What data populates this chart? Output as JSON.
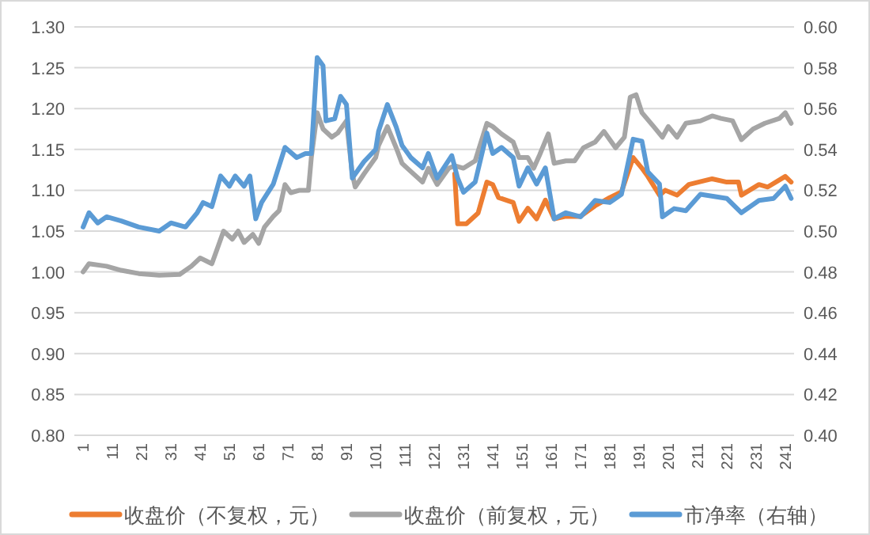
{
  "chart_data": {
    "type": "line",
    "xlim": [
      -2,
      244
    ],
    "xticks": [
      1,
      11,
      21,
      31,
      41,
      51,
      61,
      71,
      81,
      91,
      101,
      111,
      121,
      131,
      141,
      151,
      161,
      171,
      181,
      191,
      201,
      211,
      221,
      231,
      241
    ],
    "ylim": [
      0.8,
      1.3
    ],
    "yticks": [
      {
        "value": 0.8,
        "label": "0.80"
      },
      {
        "value": 0.85,
        "label": "0.85"
      },
      {
        "value": 0.9,
        "label": "0.90"
      },
      {
        "value": 0.95,
        "label": "0.95"
      },
      {
        "value": 1.0,
        "label": "1.00"
      },
      {
        "value": 1.05,
        "label": "1.05"
      },
      {
        "value": 1.1,
        "label": "1.10"
      },
      {
        "value": 1.15,
        "label": "1.15"
      },
      {
        "value": 1.2,
        "label": "1.20"
      },
      {
        "value": 1.25,
        "label": "1.25"
      },
      {
        "value": 1.3,
        "label": "1.30"
      }
    ],
    "y2lim": [
      0.4,
      0.6
    ],
    "y2ticks": [
      {
        "value": 0.4,
        "label": "0.40"
      },
      {
        "value": 0.42,
        "label": "0.42"
      },
      {
        "value": 0.44,
        "label": "0.44"
      },
      {
        "value": 0.46,
        "label": "0.46"
      },
      {
        "value": 0.48,
        "label": "0.48"
      },
      {
        "value": 0.5,
        "label": "0.50"
      },
      {
        "value": 0.52,
        "label": "0.52"
      },
      {
        "value": 0.54,
        "label": "0.54"
      },
      {
        "value": 0.56,
        "label": "0.56"
      },
      {
        "value": 0.58,
        "label": "0.58"
      },
      {
        "value": 0.6,
        "label": "0.60"
      }
    ],
    "grid": "y",
    "legend": "bottom",
    "series": [
      {
        "name": "收盘价（不复权，元）",
        "color": "#ed7d31",
        "x": [
          128,
          129,
          132,
          136,
          139,
          141,
          143,
          148,
          150,
          153,
          156,
          159,
          162,
          166,
          171,
          176,
          181,
          185,
          189,
          192,
          194,
          198,
          200,
          204,
          208,
          216,
          221,
          225,
          226,
          232,
          235,
          241,
          243
        ],
        "values": [
          1.12,
          1.059,
          1.059,
          1.072,
          1.11,
          1.107,
          1.091,
          1.085,
          1.062,
          1.078,
          1.065,
          1.088,
          1.065,
          1.068,
          1.068,
          1.081,
          1.091,
          1.098,
          1.14,
          1.127,
          1.117,
          1.094,
          1.1,
          1.094,
          1.107,
          1.114,
          1.11,
          1.11,
          1.094,
          1.107,
          1.104,
          1.117,
          1.11
        ]
      },
      {
        "name": "收盘价（前复权，元）",
        "color": "#a5a5a5",
        "x": [
          1,
          3,
          9,
          14,
          20,
          27,
          34,
          38,
          41,
          45,
          47,
          49,
          52,
          54,
          56,
          59,
          61,
          63,
          66,
          68,
          70,
          72,
          75,
          78,
          79,
          81,
          83,
          86,
          88,
          89,
          91,
          93,
          94,
          97,
          101,
          102,
          105,
          108,
          110,
          113,
          117,
          119,
          122,
          126,
          128,
          131,
          135,
          139,
          141,
          144,
          148,
          150,
          153,
          155,
          157,
          160,
          162,
          166,
          169,
          172,
          176,
          179,
          183,
          186,
          188,
          190,
          192,
          196,
          199,
          201,
          204,
          207,
          212,
          216,
          219,
          223,
          226,
          230,
          234,
          239,
          241,
          243
        ],
        "values": [
          1.0,
          1.01,
          1.007,
          1.002,
          0.998,
          0.996,
          0.997,
          1.007,
          1.017,
          1.01,
          1.03,
          1.05,
          1.04,
          1.05,
          1.036,
          1.046,
          1.035,
          1.055,
          1.068,
          1.075,
          1.107,
          1.097,
          1.1,
          1.1,
          1.14,
          1.195,
          1.175,
          1.165,
          1.17,
          1.175,
          1.185,
          1.12,
          1.104,
          1.12,
          1.14,
          1.155,
          1.178,
          1.152,
          1.133,
          1.123,
          1.11,
          1.127,
          1.107,
          1.127,
          1.13,
          1.127,
          1.136,
          1.182,
          1.178,
          1.169,
          1.159,
          1.14,
          1.14,
          1.127,
          1.143,
          1.169,
          1.133,
          1.136,
          1.136,
          1.152,
          1.159,
          1.172,
          1.152,
          1.165,
          1.214,
          1.217,
          1.195,
          1.178,
          1.165,
          1.178,
          1.165,
          1.182,
          1.185,
          1.191,
          1.188,
          1.185,
          1.162,
          1.175,
          1.182,
          1.188,
          1.195,
          1.182
        ]
      },
      {
        "name": "市净率（右轴）",
        "color": "#5b9bd5",
        "axis": "y2",
        "x": [
          1,
          3,
          6,
          9,
          14,
          20,
          27,
          31,
          36,
          40,
          42,
          45,
          48,
          51,
          53,
          56,
          58,
          60,
          62,
          66,
          70,
          74,
          77,
          79,
          81,
          83,
          84,
          87,
          89,
          91,
          93,
          97,
          101,
          102,
          105,
          108,
          110,
          113,
          117,
          119,
          122,
          127,
          129,
          131,
          135,
          139,
          141,
          144,
          148,
          150,
          153,
          156,
          159,
          162,
          166,
          171,
          176,
          181,
          185,
          189,
          192,
          194,
          198,
          199,
          203,
          207,
          212,
          221,
          226,
          232,
          237,
          241,
          243
        ],
        "values": [
          0.502,
          0.509,
          0.504,
          0.507,
          0.505,
          0.502,
          0.5,
          0.504,
          0.502,
          0.509,
          0.514,
          0.512,
          0.527,
          0.522,
          0.527,
          0.522,
          0.527,
          0.506,
          0.514,
          0.523,
          0.541,
          0.536,
          0.538,
          0.538,
          0.585,
          0.581,
          0.554,
          0.555,
          0.566,
          0.562,
          0.526,
          0.534,
          0.54,
          0.549,
          0.562,
          0.551,
          0.542,
          0.536,
          0.531,
          0.538,
          0.526,
          0.537,
          0.526,
          0.519,
          0.524,
          0.548,
          0.538,
          0.541,
          0.536,
          0.522,
          0.531,
          0.523,
          0.531,
          0.506,
          0.509,
          0.507,
          0.515,
          0.514,
          0.518,
          0.545,
          0.544,
          0.529,
          0.523,
          0.507,
          0.511,
          0.51,
          0.518,
          0.516,
          0.509,
          0.515,
          0.516,
          0.522,
          0.516
        ]
      }
    ]
  }
}
